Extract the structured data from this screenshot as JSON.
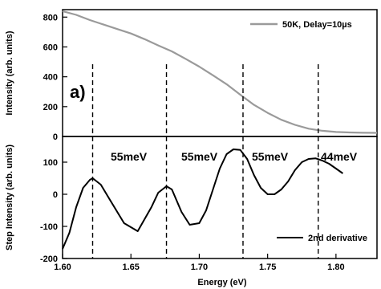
{
  "chart_data": [
    {
      "type": "line",
      "panel_label": "a)",
      "ylabel": "Intensity (arb. units)",
      "ylim": [
        0,
        850
      ],
      "xlim": [
        1.6,
        1.83
      ],
      "yticks": [
        "0",
        "200",
        "400",
        "600",
        "800"
      ],
      "grid": false,
      "legend_position": "top-right",
      "series": [
        {
          "name": "50K, Delay=10µs",
          "color": "#9a9a9a",
          "x": [
            1.6,
            1.61,
            1.62,
            1.63,
            1.64,
            1.65,
            1.66,
            1.67,
            1.68,
            1.69,
            1.7,
            1.71,
            1.72,
            1.73,
            1.74,
            1.75,
            1.76,
            1.77,
            1.78,
            1.79,
            1.8,
            1.81,
            1.82,
            1.83
          ],
          "y": [
            840,
            815,
            780,
            750,
            720,
            690,
            652,
            610,
            570,
            520,
            468,
            410,
            350,
            280,
            212,
            158,
            112,
            78,
            52,
            38,
            30,
            27,
            25,
            24
          ]
        }
      ]
    },
    {
      "type": "line",
      "xlabel": "Energy (eV)",
      "ylabel": "Step Intensity (arb. units)",
      "xlim": [
        1.6,
        1.83
      ],
      "ylim": [
        -200,
        180
      ],
      "xticks": [
        "1.60",
        "1.65",
        "1.70",
        "1.75",
        "1.80"
      ],
      "yticks": [
        "-200",
        "-100",
        "0",
        "100"
      ],
      "grid": false,
      "legend_position": "bottom-right",
      "annotations": [
        "55meV",
        "55meV",
        "55meV",
        "44meV"
      ],
      "series": [
        {
          "name": "2nd derivative",
          "color": "#000000",
          "x": [
            1.6,
            1.605,
            1.61,
            1.615,
            1.62,
            1.622,
            1.628,
            1.635,
            1.645,
            1.655,
            1.665,
            1.67,
            1.676,
            1.68,
            1.687,
            1.693,
            1.7,
            1.705,
            1.71,
            1.715,
            1.72,
            1.725,
            1.73,
            1.735,
            1.74,
            1.745,
            1.75,
            1.755,
            1.76,
            1.765,
            1.77,
            1.775,
            1.78,
            1.785,
            1.79,
            1.795,
            1.8,
            1.805
          ],
          "y": [
            -170,
            -120,
            -40,
            20,
            45,
            50,
            30,
            -20,
            -90,
            -115,
            -40,
            5,
            25,
            15,
            -55,
            -95,
            -90,
            -50,
            15,
            80,
            125,
            140,
            138,
            110,
            60,
            20,
            0,
            0,
            15,
            40,
            75,
            100,
            110,
            112,
            105,
            95,
            80,
            65
          ]
        }
      ]
    }
  ],
  "vertical_markers": [
    1.622,
    1.676,
    1.732,
    1.787
  ]
}
